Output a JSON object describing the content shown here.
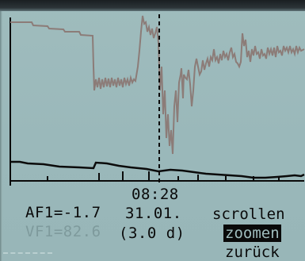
{
  "screen": {
    "bg_color": "#9fbcbd",
    "line_color_upper": "#8c7c78",
    "line_color_lower": "#0b0b0b"
  },
  "plot": {
    "cursor_time": "08:28"
  },
  "readouts": {
    "af1": "AF1=-1.7",
    "vf1": "VF1=82.6",
    "date": "31.01.",
    "range": "(3.0 d)"
  },
  "menu": {
    "items": [
      {
        "label": "scrollen",
        "selected": false
      },
      {
        "label": "zoomen",
        "selected": true
      },
      {
        "label": "zurück",
        "selected": false
      }
    ]
  }
}
